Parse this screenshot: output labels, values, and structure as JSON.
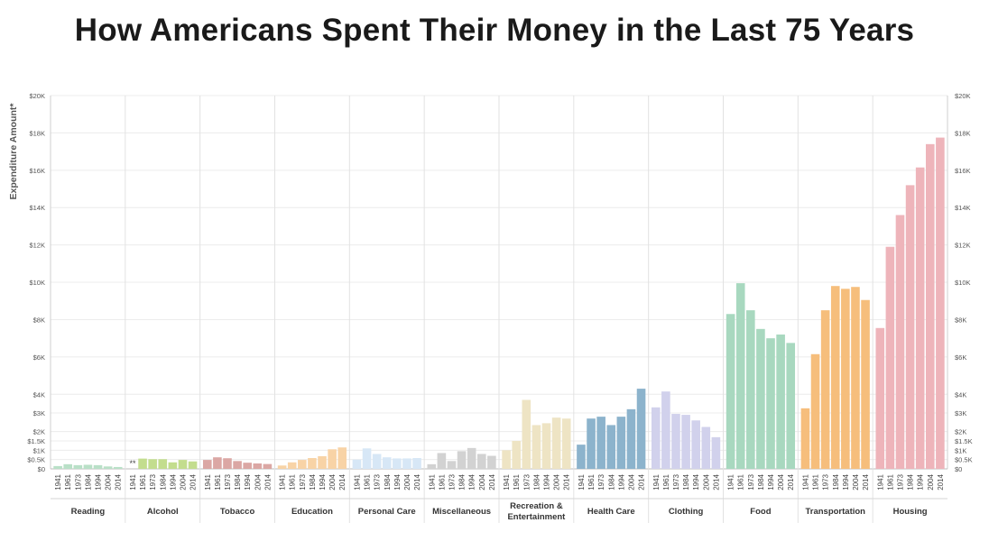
{
  "title": "How Americans Spent Their Money in the Last 75 Years",
  "chart_data": {
    "type": "bar",
    "title": "How Americans Spent Their Money in the Last 75 Years",
    "ylabel": "Expenditure Amount*",
    "xlabel": "",
    "years": [
      "1941",
      "1961",
      "1973",
      "1984",
      "1994",
      "2004",
      "2014"
    ],
    "ylim": [
      0,
      20000
    ],
    "scale_note": "non-linear axis: 0-3K stretched",
    "y_ticks": [
      {
        "value": 0,
        "label": "$0"
      },
      {
        "value": 500,
        "label": "$0.5K"
      },
      {
        "value": 1000,
        "label": "$1K"
      },
      {
        "value": 1500,
        "label": "$1.5K"
      },
      {
        "value": 2000,
        "label": "$2K"
      },
      {
        "value": 3000,
        "label": "$3K"
      },
      {
        "value": 4000,
        "label": "$4K"
      },
      {
        "value": 6000,
        "label": "$6K"
      },
      {
        "value": 8000,
        "label": "$8K"
      },
      {
        "value": 10000,
        "label": "$10K"
      },
      {
        "value": 12000,
        "label": "$12K"
      },
      {
        "value": 14000,
        "label": "$14K"
      },
      {
        "value": 16000,
        "label": "$16K"
      },
      {
        "value": 18000,
        "label": "$18K"
      },
      {
        "value": 20000,
        "label": "$20K"
      }
    ],
    "series": [
      {
        "name": "Reading",
        "color": "#b9e0c7",
        "values": [
          150,
          250,
          200,
          220,
          200,
          130,
          100
        ]
      },
      {
        "name": "Alcohol",
        "color": "#c3dd8e",
        "note": "**",
        "values": [
          null,
          550,
          520,
          520,
          350,
          480,
          400
        ]
      },
      {
        "name": "Tobacco",
        "color": "#dba7a4",
        "values": [
          480,
          620,
          570,
          420,
          330,
          290,
          260
        ]
      },
      {
        "name": "Education",
        "color": "#f8d3a6",
        "values": [
          180,
          350,
          480,
          580,
          680,
          1050,
          1150
        ]
      },
      {
        "name": "Personal Care",
        "color": "#d7e7f6",
        "values": [
          500,
          1100,
          800,
          620,
          560,
          560,
          580
        ]
      },
      {
        "name": "Miscellaneous",
        "color": "#d2d2d2",
        "values": [
          250,
          850,
          420,
          950,
          1120,
          800,
          700
        ]
      },
      {
        "name": "Recreation & Entertainment",
        "color": "#eee4c4",
        "values": [
          1000,
          1500,
          3700,
          2350,
          2450,
          2750,
          2700
        ]
      },
      {
        "name": "Health Care",
        "color": "#8cb3cc",
        "values": [
          1300,
          2700,
          2800,
          2350,
          2800,
          3200,
          4300
        ]
      },
      {
        "name": "Clothing",
        "color": "#d1d1ec",
        "values": [
          3300,
          4150,
          2950,
          2900,
          2600,
          2250,
          1700
        ]
      },
      {
        "name": "Food",
        "color": "#a8d8bf",
        "values": [
          8300,
          9950,
          8500,
          7500,
          7000,
          7200,
          6750
        ]
      },
      {
        "name": "Transportation",
        "color": "#f6be7c",
        "values": [
          3250,
          6150,
          8500,
          9800,
          9650,
          9750,
          9050
        ]
      },
      {
        "name": "Housing",
        "color": "#eeb4ba",
        "values": [
          7550,
          11900,
          13600,
          15200,
          16150,
          17400,
          17750
        ]
      }
    ],
    "category_labels": [
      [
        "Reading"
      ],
      [
        "Alcohol"
      ],
      [
        "Tobacco"
      ],
      [
        "Education"
      ],
      [
        "Personal Care"
      ],
      [
        "Miscellaneous"
      ],
      [
        "Recreation &",
        "Entertainment"
      ],
      [
        "Health Care"
      ],
      [
        "Clothing"
      ],
      [
        "Food"
      ],
      [
        "Transportation"
      ],
      [
        "Housing"
      ]
    ]
  }
}
